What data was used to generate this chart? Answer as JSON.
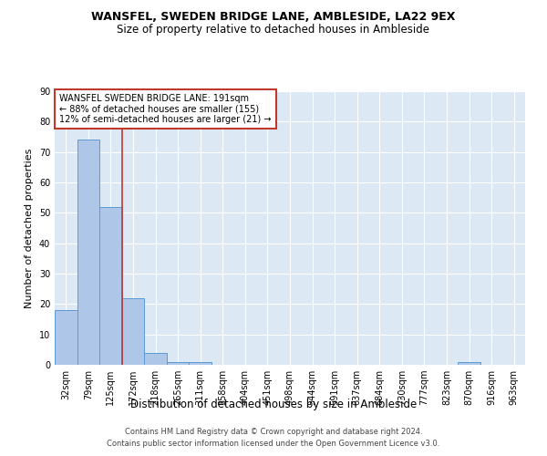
{
  "title_line1": "WANSFEL, SWEDEN BRIDGE LANE, AMBLESIDE, LA22 9EX",
  "title_line2": "Size of property relative to detached houses in Ambleside",
  "xlabel": "Distribution of detached houses by size in Ambleside",
  "ylabel": "Number of detached properties",
  "categories": [
    "32sqm",
    "79sqm",
    "125sqm",
    "172sqm",
    "218sqm",
    "265sqm",
    "311sqm",
    "358sqm",
    "404sqm",
    "451sqm",
    "498sqm",
    "544sqm",
    "591sqm",
    "637sqm",
    "684sqm",
    "730sqm",
    "777sqm",
    "823sqm",
    "870sqm",
    "916sqm",
    "963sqm"
  ],
  "values": [
    18,
    74,
    52,
    22,
    4,
    1,
    1,
    0,
    0,
    0,
    0,
    0,
    0,
    0,
    0,
    0,
    0,
    0,
    1,
    0,
    0
  ],
  "bar_color": "#aec6e8",
  "bar_edge_color": "#5b9bd5",
  "vline_color": "#c0392b",
  "annotation_text": "WANSFEL SWEDEN BRIDGE LANE: 191sqm\n← 88% of detached houses are smaller (155)\n12% of semi-detached houses are larger (21) →",
  "annotation_box_color": "white",
  "annotation_box_edge": "#c0392b",
  "ylim": [
    0,
    90
  ],
  "yticks": [
    0,
    10,
    20,
    30,
    40,
    50,
    60,
    70,
    80,
    90
  ],
  "footer_line1": "Contains HM Land Registry data © Crown copyright and database right 2024.",
  "footer_line2": "Contains public sector information licensed under the Open Government Licence v3.0.",
  "bg_color": "#dce9f5",
  "grid_color": "#ffffff",
  "title_fontsize": 9,
  "subtitle_fontsize": 8.5,
  "axis_label_fontsize": 8,
  "tick_fontsize": 7,
  "annotation_fontsize": 7,
  "footer_fontsize": 6
}
